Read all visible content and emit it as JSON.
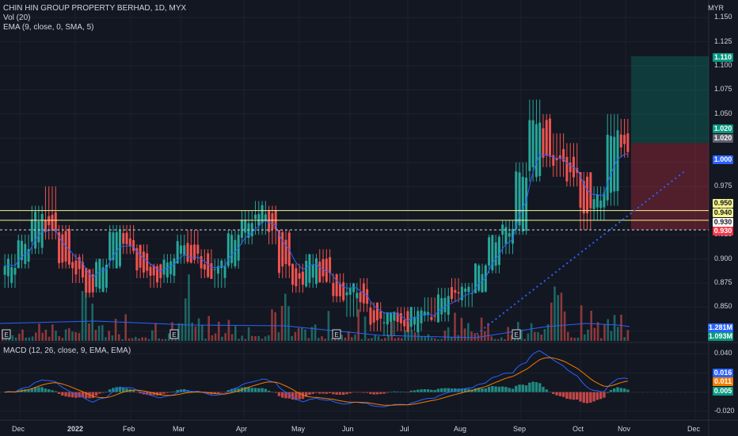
{
  "legend": {
    "title": "CHIN HIN GROUP PROPERTY BERHAD, 1D, MYX",
    "vol": "Vol (20)",
    "ema": "EMA (9, close, 0, SMA, 5)",
    "macd": "MACD (12, 26, close, 9, EMA, EMA)"
  },
  "axis": {
    "currency": "MYR",
    "price_ticks": [
      "1.150",
      "1.125",
      "1.100",
      "1.075",
      "1.050",
      "1.025",
      "1.000",
      "0.975",
      "0.950",
      "0.925",
      "0.900",
      "0.875",
      "0.850",
      "0.825"
    ],
    "macd_ticks": [
      "0.040",
      "0.020",
      "0.000",
      "-0.020"
    ],
    "time_labels": [
      "Dec",
      "2022",
      "Feb",
      "Mar",
      "Apr",
      "May",
      "Jun",
      "Jul",
      "Aug",
      "Sep",
      "Oct",
      "Nov",
      "Dec"
    ]
  },
  "price_tags": [
    {
      "value": "1.110",
      "bg": "#089981",
      "fg": "#ffffff"
    },
    {
      "value": "1.020",
      "bg": "#089981",
      "fg": "#ffffff"
    },
    {
      "value": "1.020",
      "bg": "#5d606b",
      "fg": "#ffffff"
    },
    {
      "value": "1.000",
      "bg": "#2962ff",
      "fg": "#ffffff"
    },
    {
      "value": "0.950",
      "bg": "#f7f48b",
      "fg": "#131722"
    },
    {
      "value": "0.940",
      "bg": "#f7f48b",
      "fg": "#131722"
    },
    {
      "value": "0.930",
      "bg": "#ffffff",
      "fg": "#131722"
    },
    {
      "value": "0.930",
      "bg": "#f23645",
      "fg": "#ffffff"
    },
    {
      "value": "1.281M",
      "bg": "#2962ff",
      "fg": "#ffffff"
    },
    {
      "value": "1.093M",
      "bg": "#089981",
      "fg": "#ffffff"
    }
  ],
  "macd_tags": [
    {
      "value": "0.016",
      "bg": "#2962ff",
      "fg": "#ffffff"
    },
    {
      "value": "0.011",
      "bg": "#f57c00",
      "fg": "#ffffff"
    },
    {
      "value": "0.005",
      "bg": "#089981",
      "fg": "#ffffff"
    }
  ],
  "earnings_marker": "E",
  "colors": {
    "up": "#26a69a",
    "down": "#ef5350",
    "ema": "#2962ff",
    "signal": "#f57c00",
    "hline": "#f7f48b",
    "trend": "#2962ff"
  },
  "chart_data": {
    "type": "candlestick",
    "levels": {
      "resistance": 0.95,
      "support": 0.94,
      "dashed": 0.93,
      "target": 1.11,
      "entry": 1.02,
      "stop": 0.93
    },
    "price_range": [
      0.815,
      1.16
    ],
    "macd_range": [
      -0.025,
      0.045
    ],
    "ohlc_approx": [
      [
        0.88,
        0.905,
        0.87,
        0.895
      ],
      [
        0.895,
        0.925,
        0.89,
        0.915
      ],
      [
        0.915,
        0.955,
        0.905,
        0.945
      ],
      [
        0.945,
        0.975,
        0.92,
        0.93
      ],
      [
        0.93,
        0.935,
        0.89,
        0.9
      ],
      [
        0.9,
        0.905,
        0.875,
        0.885
      ],
      [
        0.885,
        0.89,
        0.86,
        0.87
      ],
      [
        0.87,
        0.9,
        0.865,
        0.895
      ],
      [
        0.895,
        0.935,
        0.89,
        0.925
      ],
      [
        0.925,
        0.935,
        0.905,
        0.91
      ],
      [
        0.91,
        0.915,
        0.88,
        0.89
      ],
      [
        0.89,
        0.895,
        0.87,
        0.88
      ],
      [
        0.88,
        0.905,
        0.875,
        0.9
      ],
      [
        0.9,
        0.925,
        0.895,
        0.915
      ],
      [
        0.915,
        0.93,
        0.895,
        0.9
      ],
      [
        0.9,
        0.91,
        0.88,
        0.885
      ],
      [
        0.885,
        0.9,
        0.87,
        0.895
      ],
      [
        0.895,
        0.93,
        0.89,
        0.925
      ],
      [
        0.925,
        0.95,
        0.915,
        0.94
      ],
      [
        0.94,
        0.96,
        0.925,
        0.95
      ],
      [
        0.95,
        0.955,
        0.915,
        0.925
      ],
      [
        0.925,
        0.93,
        0.88,
        0.89
      ],
      [
        0.89,
        0.895,
        0.865,
        0.875
      ],
      [
        0.875,
        0.905,
        0.87,
        0.9
      ],
      [
        0.9,
        0.91,
        0.875,
        0.88
      ],
      [
        0.88,
        0.885,
        0.855,
        0.86
      ],
      [
        0.86,
        0.875,
        0.84,
        0.87
      ],
      [
        0.87,
        0.88,
        0.845,
        0.85
      ],
      [
        0.85,
        0.855,
        0.825,
        0.835
      ],
      [
        0.835,
        0.845,
        0.82,
        0.84
      ],
      [
        0.84,
        0.85,
        0.825,
        0.83
      ],
      [
        0.83,
        0.85,
        0.825,
        0.845
      ],
      [
        0.845,
        0.86,
        0.835,
        0.84
      ],
      [
        0.84,
        0.87,
        0.835,
        0.865
      ],
      [
        0.865,
        0.88,
        0.855,
        0.86
      ],
      [
        0.86,
        0.875,
        0.85,
        0.87
      ],
      [
        0.87,
        0.895,
        0.865,
        0.89
      ],
      [
        0.89,
        0.925,
        0.885,
        0.92
      ],
      [
        0.92,
        0.94,
        0.905,
        0.93
      ],
      [
        0.93,
        1.0,
        0.925,
        0.99
      ],
      [
        0.99,
        1.065,
        0.98,
        1.04
      ],
      [
        1.04,
        1.05,
        0.995,
        1.01
      ],
      [
        1.01,
        1.03,
        0.985,
        1.0
      ],
      [
        1.0,
        1.02,
        0.975,
        0.985
      ],
      [
        0.985,
        0.99,
        0.93,
        0.95
      ],
      [
        0.95,
        0.975,
        0.94,
        0.965
      ],
      [
        0.965,
        1.05,
        0.955,
        1.03
      ],
      [
        1.03,
        1.045,
        1.005,
        1.015
      ]
    ]
  }
}
